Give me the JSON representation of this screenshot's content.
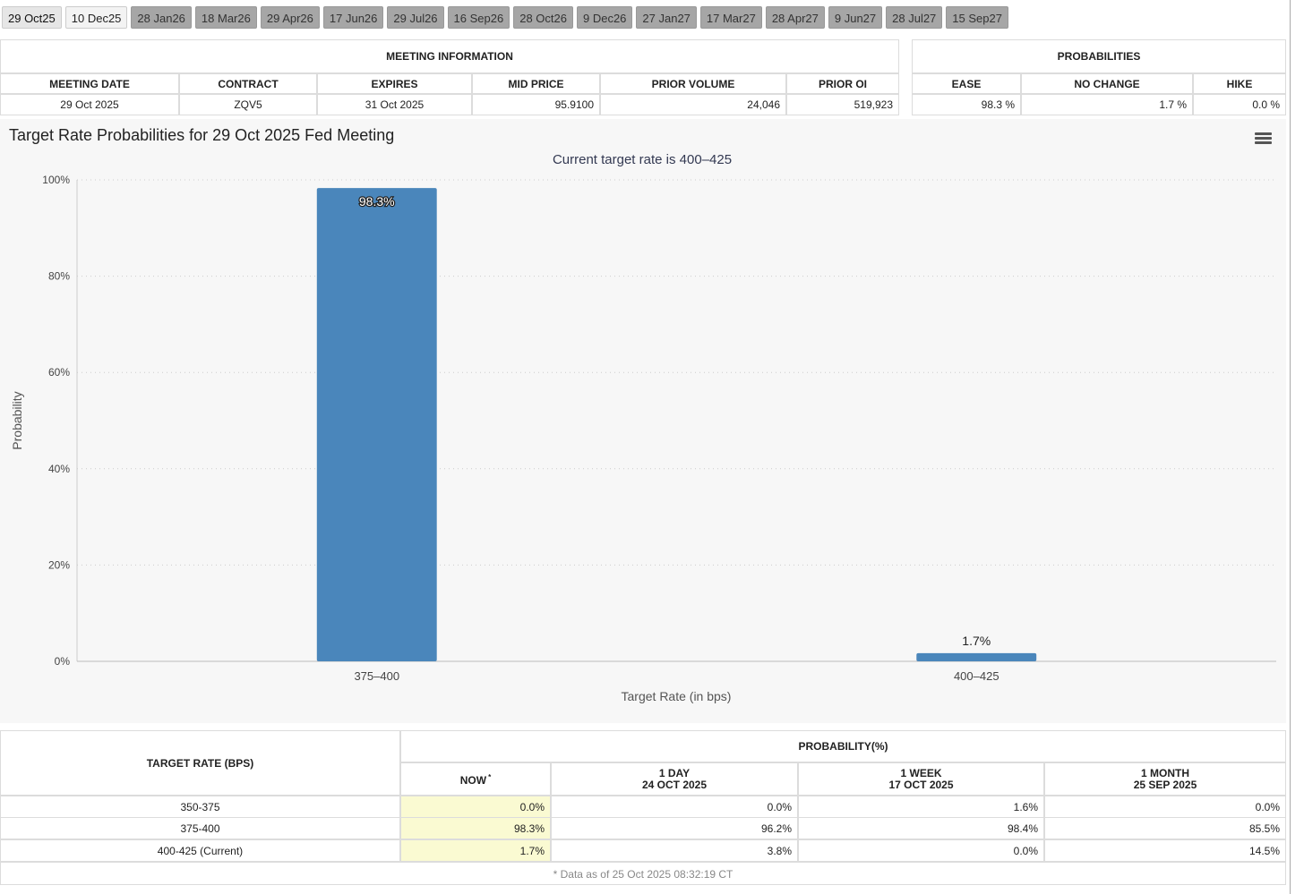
{
  "tabs": [
    "29 Oct25",
    "10 Dec25",
    "28 Jan26",
    "18 Mar26",
    "29 Apr26",
    "17 Jun26",
    "29 Jul26",
    "16 Sep26",
    "28 Oct26",
    "9 Dec26",
    "27 Jan27",
    "17 Mar27",
    "28 Apr27",
    "9 Jun27",
    "28 Jul27",
    "15 Sep27"
  ],
  "meeting_information": {
    "title": "MEETING INFORMATION",
    "columns": [
      "MEETING DATE",
      "CONTRACT",
      "EXPIRES",
      "MID PRICE",
      "PRIOR VOLUME",
      "PRIOR OI"
    ],
    "row": [
      "29 Oct 2025",
      "ZQV5",
      "31 Oct 2025",
      "95.9100",
      "24,046",
      "519,923"
    ]
  },
  "probabilities": {
    "title": "PROBABILITIES",
    "columns": [
      "EASE",
      "NO CHANGE",
      "HIKE"
    ],
    "row": [
      "98.3 %",
      "1.7 %",
      "0.0 %"
    ]
  },
  "chart_data": {
    "type": "bar",
    "title": "Target Rate Probabilities for 29 Oct 2025 Fed Meeting",
    "subtitle": "Current target rate is 400–425",
    "x_label": "Target Rate (in bps)",
    "y_label": "Probability",
    "categories": [
      "375–400",
      "400–425"
    ],
    "values": [
      98.3,
      1.7
    ],
    "value_labels": [
      "98.3%",
      "1.7%"
    ],
    "color": "#4a86bb",
    "ylim": [
      0,
      100
    ],
    "yticks": [
      {
        "value": 0,
        "label": "0%"
      },
      {
        "value": 20,
        "label": "20%"
      },
      {
        "value": 40,
        "label": "40%"
      },
      {
        "value": 60,
        "label": "60%"
      },
      {
        "value": 80,
        "label": "80%"
      },
      {
        "value": 100,
        "label": "100%"
      }
    ],
    "grid": true
  },
  "probability_table": {
    "row_header": "TARGET RATE (BPS)",
    "group_header": "PROBABILITY(%)",
    "columns": [
      {
        "label": "NOW",
        "note": "*"
      },
      {
        "label": "1 DAY",
        "date": "24 OCT 2025"
      },
      {
        "label": "1 WEEK",
        "date": "17 OCT 2025"
      },
      {
        "label": "1 MONTH",
        "date": "25 SEP 2025"
      }
    ],
    "rows": [
      [
        "350-375",
        "0.0%",
        "0.0%",
        "1.6%",
        "0.0%"
      ],
      [
        "375-400",
        "98.3%",
        "96.2%",
        "98.4%",
        "85.5%"
      ],
      [
        "400-425 (Current)",
        "1.7%",
        "3.8%",
        "0.0%",
        "14.5%"
      ]
    ],
    "footnote": "* Data as of 25 Oct 2025 08:32:19 CT"
  }
}
